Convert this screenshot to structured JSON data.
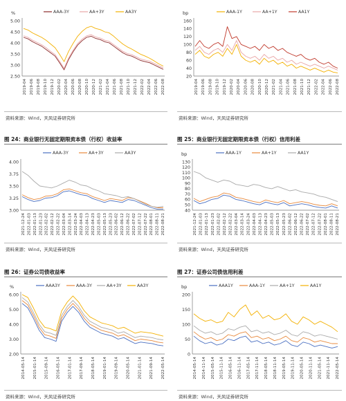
{
  "captions": [
    "图 24：商业银行无固定期限资本债（行权）收益率",
    "图 25：商业银行无固定期限资本债（行权）信用利差",
    "图 26：证券公司债收益率",
    "图 27：证券公司债信用利差"
  ],
  "source_text": "资料来源：Wind，天风证券研究所",
  "chart_data": [
    {
      "type": "line",
      "ylabel": "%",
      "ylim": [
        2.5,
        5.0
      ],
      "yticks": [
        "2.50",
        "3.00",
        "3.50",
        "4.00",
        "4.50",
        "5.00"
      ],
      "xticks": [
        "2019-04",
        "2019-06",
        "2019-08",
        "2019-10",
        "2019-12",
        "2020-02",
        "2020-04",
        "2020-06",
        "2020-08",
        "2020-10",
        "2020-12",
        "2021-02",
        "2021-04",
        "2021-06",
        "2021-08",
        "2021-10",
        "2021-12",
        "2022-02",
        "2022-04",
        "2022-06",
        "2022-08"
      ],
      "legend": "top",
      "series": [
        {
          "name": "AAA-3Y",
          "color": "#8b2a2a",
          "values": [
            4.25,
            4.18,
            4.05,
            3.95,
            3.85,
            3.7,
            3.55,
            3.4,
            3.1,
            2.78,
            3.25,
            3.6,
            3.9,
            4.1,
            4.25,
            4.3,
            4.2,
            4.15,
            4.05,
            4.0,
            3.85,
            3.7,
            3.55,
            3.45,
            3.4,
            3.3,
            3.2,
            3.15,
            3.1,
            3.0,
            2.9,
            2.8
          ]
        },
        {
          "name": "AA+3Y",
          "color": "#e9a6a6",
          "values": [
            4.32,
            4.25,
            4.12,
            4.02,
            3.92,
            3.78,
            3.62,
            3.47,
            3.17,
            2.85,
            3.32,
            3.67,
            3.97,
            4.17,
            4.32,
            4.37,
            4.27,
            4.22,
            4.12,
            4.07,
            3.92,
            3.77,
            3.62,
            3.52,
            3.47,
            3.37,
            3.27,
            3.22,
            3.17,
            3.07,
            2.97,
            2.87
          ]
        },
        {
          "name": "AA3Y",
          "color": "#f3b000",
          "values": [
            4.65,
            4.58,
            4.45,
            4.35,
            4.25,
            4.12,
            3.95,
            3.78,
            3.48,
            3.15,
            3.62,
            3.98,
            4.3,
            4.52,
            4.68,
            4.75,
            4.65,
            4.6,
            4.5,
            4.45,
            4.3,
            4.12,
            3.95,
            3.82,
            3.72,
            3.6,
            3.48,
            3.4,
            3.3,
            3.18,
            3.05,
            2.95
          ]
        }
      ]
    },
    {
      "type": "line",
      "ylabel": "bp",
      "ylim": [
        20,
        160
      ],
      "yticks": [
        "20",
        "40",
        "60",
        "80",
        "100",
        "120",
        "140",
        "160"
      ],
      "xticks": [
        "2019-04",
        "2019-06",
        "2019-08",
        "2019-10",
        "2019-12",
        "2020-02",
        "2020-04",
        "2020-06",
        "2020-08",
        "2020-10",
        "2020-12",
        "2021-02",
        "2021-04",
        "2021-06",
        "2021-08",
        "2021-10",
        "2021-12",
        "2022-02",
        "2022-04",
        "2022-06",
        "2022-08"
      ],
      "legend": "top",
      "series": [
        {
          "name": "AAA-1Y",
          "color": "#f3b000",
          "values": [
            75,
            85,
            70,
            65,
            75,
            80,
            70,
            90,
            75,
            100,
            70,
            60,
            55,
            60,
            50,
            65,
            55,
            60,
            50,
            55,
            45,
            50,
            40,
            45,
            40,
            35,
            40,
            35,
            30,
            35,
            30,
            28
          ]
        },
        {
          "name": "AA+1Y",
          "color": "#e9a6a6",
          "values": [
            85,
            95,
            80,
            75,
            85,
            90,
            80,
            100,
            85,
            110,
            80,
            70,
            65,
            70,
            60,
            75,
            65,
            70,
            60,
            65,
            55,
            60,
            50,
            55,
            50,
            45,
            50,
            45,
            40,
            45,
            40,
            35
          ]
        },
        {
          "name": "AA1Y",
          "color": "#c0392b",
          "values": [
            95,
            110,
            95,
            90,
            100,
            105,
            95,
            145,
            115,
            120,
            100,
            95,
            90,
            95,
            85,
            100,
            90,
            95,
            85,
            90,
            80,
            75,
            70,
            75,
            65,
            60,
            65,
            55,
            50,
            55,
            45,
            40
          ]
        }
      ]
    },
    {
      "type": "line",
      "ylabel": "",
      "ylim": [
        3.0,
        4.0
      ],
      "yticks": [
        "3.00",
        "3.25",
        "3.50",
        "3.75",
        "4.00"
      ],
      "xticks": [
        "2021-12-24",
        "2022-01-03",
        "2022-01-13",
        "2022-01-23",
        "2022-02-02",
        "2022-02-12",
        "2022-02-22",
        "2022-03-04",
        "2022-03-14",
        "2022-03-24",
        "2022-04-03",
        "2022-04-13",
        "2022-04-23",
        "2022-05-03",
        "2022-05-13",
        "2022-05-23",
        "2022-06-02",
        "2022-06-12",
        "2022-06-22",
        "2022-07-02",
        "2022-07-12",
        "2022-07-22",
        "2022-08-01",
        "2022-08-11",
        "2022-08-21"
      ],
      "legend": "top",
      "series": [
        {
          "name": "AAA-3Y",
          "color": "#4a6fc1",
          "values": [
            3.28,
            3.22,
            3.18,
            3.2,
            3.25,
            3.26,
            3.3,
            3.38,
            3.4,
            3.36,
            3.32,
            3.3,
            3.24,
            3.2,
            3.16,
            3.2,
            3.18,
            3.16,
            3.22,
            3.2,
            3.15,
            3.1,
            3.05,
            3.02,
            3.02
          ]
        },
        {
          "name": "AA+3Y",
          "color": "#e8893c",
          "values": [
            3.32,
            3.26,
            3.22,
            3.24,
            3.29,
            3.3,
            3.34,
            3.42,
            3.44,
            3.4,
            3.36,
            3.34,
            3.28,
            3.24,
            3.2,
            3.24,
            3.22,
            3.2,
            3.26,
            3.24,
            3.19,
            3.14,
            3.08,
            3.05,
            3.05
          ]
        },
        {
          "name": "AA3Y",
          "color": "#a9a9a9",
          "values": [
            3.8,
            3.72,
            3.6,
            3.5,
            3.48,
            3.46,
            3.5,
            3.56,
            3.62,
            3.58,
            3.52,
            3.5,
            3.44,
            3.4,
            3.34,
            3.32,
            3.3,
            3.26,
            3.28,
            3.24,
            3.18,
            3.12,
            3.08,
            3.06,
            3.08
          ]
        }
      ]
    },
    {
      "type": "line",
      "ylabel": "bp",
      "ylim": [
        40,
        130
      ],
      "yticks": [
        "40",
        "50",
        "60",
        "70",
        "80",
        "90",
        "100",
        "110",
        "120",
        "130"
      ],
      "xticks": [
        "2021-12-24",
        "2022-01-03",
        "2022-01-13",
        "2022-01-23",
        "2022-02-02",
        "2022-02-12",
        "2022-02-22",
        "2022-03-04",
        "2022-03-14",
        "2022-03-24",
        "2022-04-03",
        "2022-04-13",
        "2022-04-23",
        "2022-05-03",
        "2022-05-13",
        "2022-05-23",
        "2022-06-02",
        "2022-06-12",
        "2022-06-22",
        "2022-07-02",
        "2022-07-12",
        "2022-07-22",
        "2022-08-01",
        "2022-08-11",
        "2022-08-21"
      ],
      "legend": "top",
      "series": [
        {
          "name": "AAA-1Y",
          "color": "#4a6fc1",
          "values": [
            58,
            52,
            55,
            60,
            62,
            68,
            66,
            60,
            58,
            55,
            52,
            50,
            55,
            52,
            50,
            54,
            48,
            50,
            52,
            50,
            47,
            45,
            44,
            48,
            44
          ]
        },
        {
          "name": "AA+1Y",
          "color": "#e8893c",
          "values": [
            62,
            56,
            60,
            64,
            66,
            72,
            70,
            64,
            62,
            59,
            56,
            54,
            59,
            56,
            54,
            58,
            52,
            54,
            56,
            54,
            51,
            49,
            48,
            52,
            48
          ]
        },
        {
          "name": "AA1Y",
          "color": "#a9a9a9",
          "values": [
            112,
            108,
            100,
            96,
            92,
            96,
            94,
            88,
            86,
            84,
            88,
            86,
            82,
            80,
            84,
            80,
            76,
            78,
            74,
            72,
            70,
            66,
            64,
            60,
            56
          ]
        }
      ]
    },
    {
      "type": "line",
      "ylabel": "%",
      "ylim": [
        2.0,
        6.0
      ],
      "yticks": [
        "2.00",
        "3.00",
        "4.00",
        "5.00",
        "6.00"
      ],
      "xticks": [
        "2014-05-14",
        "2015-01-14",
        "2015-09-14",
        "2016-05-14",
        "2017-01-14",
        "2017-09-14",
        "2018-05-14",
        "2019-01-14",
        "2019-09-14",
        "2020-05-14",
        "2021-01-14",
        "2021-09-14",
        "2022-05-14"
      ],
      "legend": "top",
      "series": [
        {
          "name": "AAA3Y",
          "color": "#4a6fc1",
          "values": [
            5.4,
            5.1,
            4.4,
            3.6,
            3.1,
            3.0,
            2.85,
            4.2,
            4.8,
            5.2,
            4.8,
            4.2,
            3.8,
            3.6,
            3.4,
            3.3,
            3.2,
            3.0,
            3.1,
            2.9,
            2.7,
            2.8,
            2.75,
            2.7,
            2.6,
            2.55
          ]
        },
        {
          "name": "AAA-3Y",
          "color": "#e8893c",
          "values": [
            5.6,
            5.3,
            4.6,
            3.8,
            3.3,
            3.2,
            3.05,
            4.4,
            5.0,
            5.4,
            5.0,
            4.4,
            4.0,
            3.8,
            3.6,
            3.5,
            3.4,
            3.2,
            3.3,
            3.1,
            2.9,
            3.0,
            2.95,
            2.9,
            2.8,
            2.75
          ]
        },
        {
          "name": "AA+3Y",
          "color": "#a9a9a9",
          "values": [
            5.8,
            5.5,
            4.8,
            4.0,
            3.5,
            3.4,
            3.25,
            4.6,
            5.2,
            5.6,
            5.2,
            4.6,
            4.2,
            4.0,
            3.8,
            3.7,
            3.6,
            3.4,
            3.5,
            3.3,
            3.1,
            3.2,
            3.15,
            3.1,
            3.0,
            2.95
          ]
        },
        {
          "name": "AA3Y",
          "color": "#f3b000",
          "values": [
            6.0,
            5.8,
            5.1,
            4.3,
            3.8,
            3.7,
            3.55,
            4.9,
            5.5,
            5.9,
            5.5,
            4.9,
            4.5,
            4.3,
            4.1,
            4.0,
            3.9,
            3.7,
            3.8,
            3.6,
            3.4,
            3.5,
            3.45,
            3.4,
            3.3,
            3.2
          ]
        }
      ]
    },
    {
      "type": "line",
      "ylabel": "bp",
      "ylim": [
        0,
        200
      ],
      "yticks": [
        "0",
        "50",
        "100",
        "150",
        "200"
      ],
      "xticks": [
        "2014-05-14",
        "2014-11-14",
        "2015-05-14",
        "2015-11-14",
        "2016-05-14",
        "2016-11-14",
        "2017-05-14",
        "2017-11-14",
        "2018-05-14",
        "2018-11-14",
        "2019-05-14",
        "2019-11-14",
        "2020-05-14",
        "2020-11-14",
        "2021-05-14",
        "2021-11-14",
        "2022-05-14"
      ],
      "legend": "top",
      "series": [
        {
          "name": "AAA1Y",
          "color": "#4a6fc1",
          "values": [
            60,
            45,
            35,
            40,
            30,
            35,
            50,
            45,
            55,
            60,
            40,
            45,
            35,
            40,
            30,
            35,
            45,
            30,
            25,
            40,
            35,
            25,
            30,
            25,
            20,
            25
          ]
        },
        {
          "name": "AAA-1Y",
          "color": "#e8893c",
          "values": [
            75,
            60,
            50,
            55,
            45,
            50,
            65,
            60,
            70,
            75,
            55,
            60,
            50,
            55,
            45,
            50,
            60,
            45,
            40,
            55,
            50,
            40,
            45,
            40,
            35,
            35
          ]
        },
        {
          "name": "AA+1Y",
          "color": "#a9a9a9",
          "values": [
            95,
            80,
            70,
            75,
            65,
            70,
            85,
            80,
            90,
            95,
            75,
            80,
            70,
            75,
            65,
            70,
            80,
            65,
            60,
            75,
            70,
            60,
            65,
            60,
            55,
            50
          ]
        },
        {
          "name": "AA1Y",
          "color": "#f3b000",
          "values": [
            135,
            120,
            110,
            115,
            105,
            110,
            140,
            125,
            150,
            165,
            130,
            145,
            120,
            130,
            115,
            120,
            135,
            110,
            100,
            125,
            115,
            100,
            110,
            100,
            90,
            75
          ]
        }
      ]
    }
  ]
}
